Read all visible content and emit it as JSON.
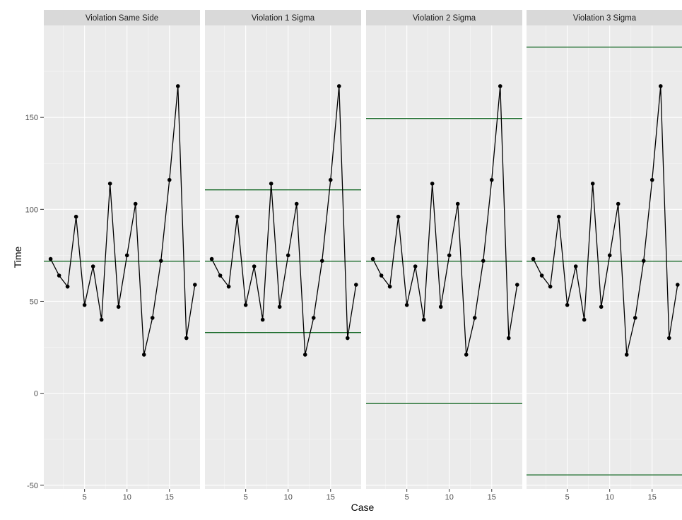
{
  "chart_data": {
    "type": "line",
    "xlabel": "Case",
    "ylabel": "Time",
    "xlim": [
      0.2,
      18.6
    ],
    "ylim": [
      -52,
      200
    ],
    "xticks": [
      5,
      10,
      15
    ],
    "yticks": [
      -50,
      0,
      50,
      100,
      150
    ],
    "grid": true,
    "x": [
      1,
      2,
      3,
      4,
      5,
      6,
      7,
      8,
      9,
      10,
      11,
      12,
      13,
      14,
      15,
      16,
      17,
      18
    ],
    "y": [
      73,
      64,
      58,
      96,
      48,
      69,
      40,
      114,
      47,
      75,
      103,
      21,
      41,
      72,
      116,
      167,
      30,
      59
    ],
    "panels": [
      {
        "title": "Violation Same Side",
        "hlines": [
          71.8
        ]
      },
      {
        "title": "Violation 1 Sigma",
        "hlines": [
          110.6,
          71.8,
          33.0
        ]
      },
      {
        "title": "Violation 2 Sigma",
        "hlines": [
          149.4,
          71.8,
          -5.6
        ]
      },
      {
        "title": "Violation 3 Sigma",
        "hlines": [
          188.2,
          71.8,
          -44.4
        ]
      }
    ],
    "colors": {
      "line": "#000000",
      "point": "#000000",
      "hline": "#1a6b2a",
      "panel_bg": "#ebebeb",
      "strip_bg": "#d9d9d9",
      "grid": "#ffffff"
    }
  }
}
